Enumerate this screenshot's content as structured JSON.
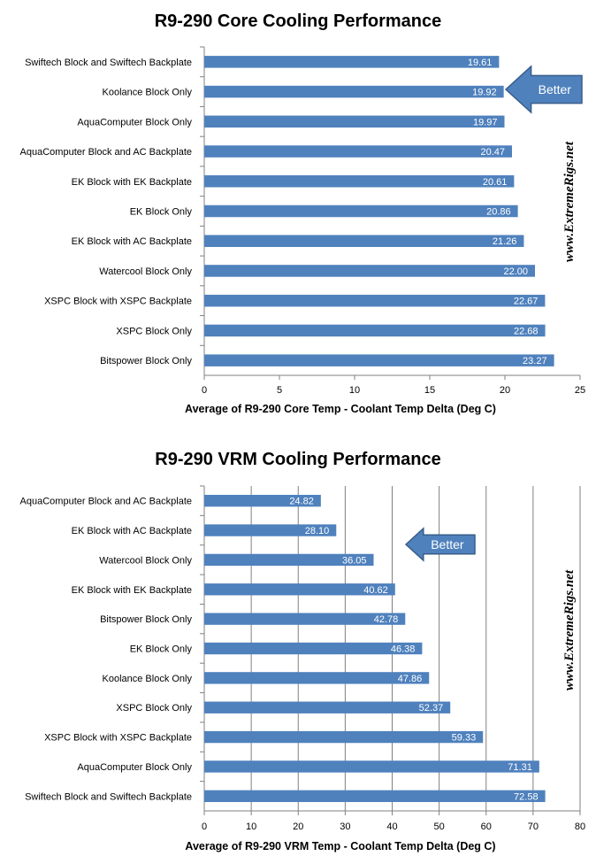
{
  "chart_data": [
    {
      "type": "bar",
      "orientation": "horizontal",
      "title": "R9-290 Core Cooling Performance",
      "xlabel": "Average of R9-290 Core Temp - Coolant Temp Delta (Deg C)",
      "ylabel": "",
      "categories": [
        "Swiftech Block and Swiftech Backplate",
        "Koolance Block Only",
        "AquaComputer Block Only",
        "AquaComputer Block and AC Backplate",
        "EK Block with EK Backplate",
        "EK Block Only",
        "EK Block with AC Backplate",
        "Watercool Block Only",
        "XSPC Block with XSPC Backplate",
        "XSPC Block Only",
        "Bitspower Block Only"
      ],
      "values": [
        19.61,
        19.92,
        19.97,
        20.47,
        20.61,
        20.86,
        21.26,
        22.0,
        22.67,
        22.68,
        23.27
      ],
      "value_labels": [
        "19.61",
        "19.92",
        "19.97",
        "20.47",
        "20.61",
        "20.86",
        "21.26",
        "22.00",
        "22.67",
        "22.68",
        "23.27"
      ],
      "xlim": [
        0,
        25
      ],
      "ticks": [
        "0",
        "5",
        "10",
        "15",
        "20",
        "25"
      ],
      "gridlines": false,
      "bar_color": "#4F81BD",
      "annotation": "Better",
      "annotation_direction": "left",
      "watermark": "www.ExtremeRigs.net"
    },
    {
      "type": "bar",
      "orientation": "horizontal",
      "title": "R9-290 VRM Cooling Performance",
      "xlabel": "Average of R9-290 VRM Temp - Coolant Temp Delta (Deg C)",
      "ylabel": "",
      "categories": [
        "AquaComputer Block and AC Backplate",
        "EK Block with AC Backplate",
        "Watercool Block Only",
        "EK Block with EK Backplate",
        "Bitspower Block Only",
        "EK Block Only",
        "Koolance Block Only",
        "XSPC Block Only",
        "XSPC Block with XSPC Backplate",
        "AquaComputer Block Only",
        "Swiftech Block and Swiftech Backplate"
      ],
      "values": [
        24.82,
        28.1,
        36.05,
        40.62,
        42.78,
        46.38,
        47.86,
        52.37,
        59.33,
        71.31,
        72.58
      ],
      "value_labels": [
        "24.82",
        "28.10",
        "36.05",
        "40.62",
        "42.78",
        "46.38",
        "47.86",
        "52.37",
        "59.33",
        "71.31",
        "72.58"
      ],
      "xlim": [
        0,
        80
      ],
      "ticks": [
        "0",
        "10",
        "20",
        "30",
        "40",
        "50",
        "60",
        "70",
        "80"
      ],
      "gridlines": true,
      "bar_color": "#4F81BD",
      "annotation": "Better",
      "annotation_direction": "left",
      "watermark": "www.ExtremeRigs.net"
    }
  ]
}
